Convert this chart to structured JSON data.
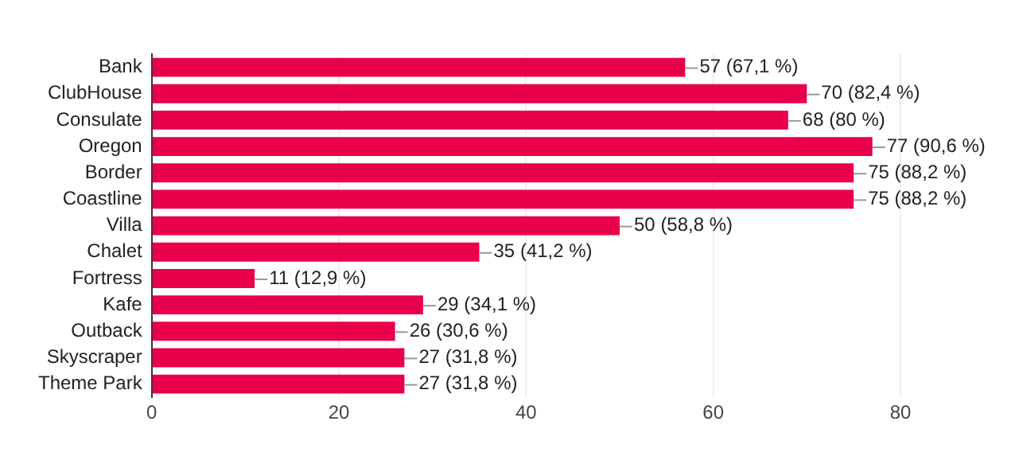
{
  "chart_data": {
    "type": "bar",
    "orientation": "horizontal",
    "categories": [
      "Bank",
      "ClubHouse",
      "Consulate",
      "Oregon",
      "Border",
      "Coastline",
      "Villa",
      "Chalet",
      "Fortress",
      "Kafe",
      "Outback",
      "Skyscraper",
      "Theme Park"
    ],
    "values": [
      57,
      70,
      68,
      77,
      75,
      75,
      50,
      35,
      11,
      29,
      26,
      27,
      27
    ],
    "value_labels": [
      "57 (67,1 %)",
      "70 (82,4 %)",
      "68 (80 %)",
      "77 (90,6 %)",
      "75 (88,2 %)",
      "75 (88,2 %)",
      "50 (58,8 %)",
      "35 (41,2 %)",
      "11 (12,9 %)",
      "29 (34,1 %)",
      "26 (30,6 %)",
      "27 (31,8 %)",
      "27 (31,8 %)"
    ],
    "color": "#e8004b",
    "xlim": [
      0,
      80
    ],
    "xticks": [
      0,
      20,
      40,
      60,
      80
    ],
    "grid": "x",
    "legend": false
  }
}
